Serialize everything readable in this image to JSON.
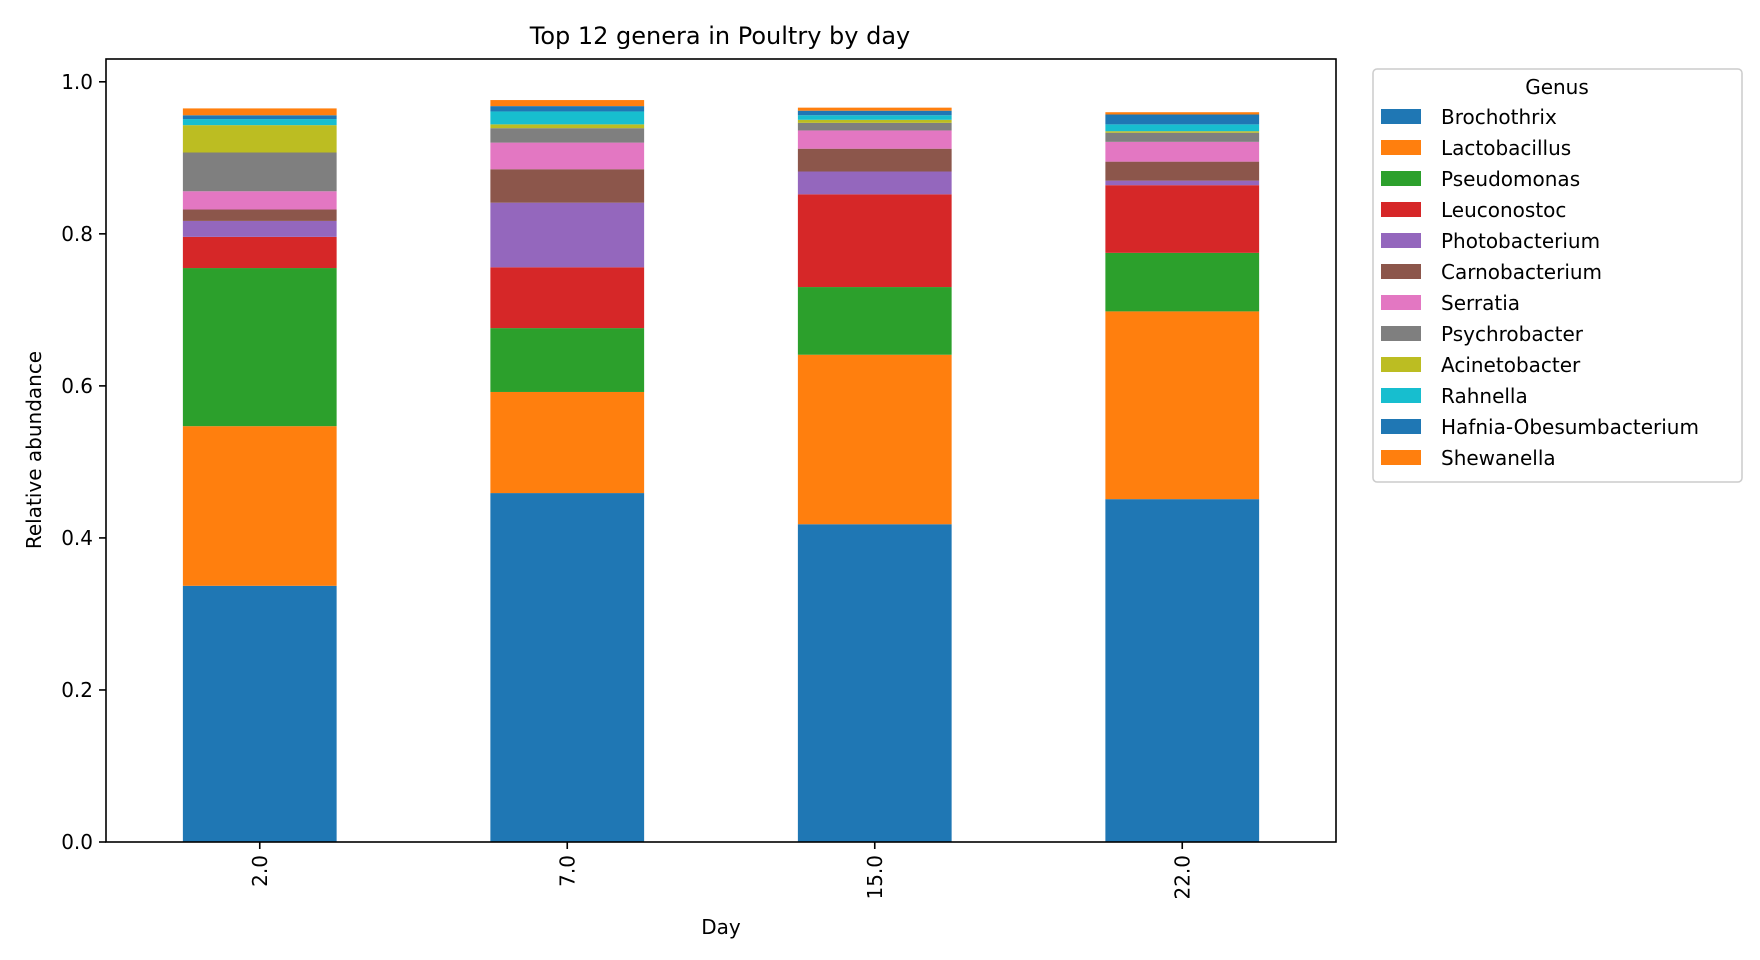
{
  "chart_data": {
    "type": "bar",
    "stacked": true,
    "title": "Top 12 genera in Poultry by day",
    "xlabel": "Day",
    "ylabel": "Relative abundance",
    "ylim": [
      0,
      1.03
    ],
    "yticks": [
      "0.0",
      "0.2",
      "0.4",
      "0.6",
      "0.8",
      "1.0"
    ],
    "categories": [
      "2.0",
      "7.0",
      "15.0",
      "22.0"
    ],
    "legend_title": "Genus",
    "legend_position": "outside-upper-right",
    "grid": false,
    "series": [
      {
        "name": "Brochothrix",
        "color": "#1f77b4",
        "values": [
          0.337,
          0.459,
          0.418,
          0.451
        ]
      },
      {
        "name": "Lactobacillus",
        "color": "#ff7f0e",
        "values": [
          0.21,
          0.133,
          0.223,
          0.247
        ]
      },
      {
        "name": "Pseudomonas",
        "color": "#2ca02c",
        "values": [
          0.208,
          0.084,
          0.089,
          0.077
        ]
      },
      {
        "name": "Leuconostoc",
        "color": "#d62728",
        "values": [
          0.041,
          0.08,
          0.122,
          0.089
        ]
      },
      {
        "name": "Photobacterium",
        "color": "#9467bd",
        "values": [
          0.021,
          0.085,
          0.03,
          0.006
        ]
      },
      {
        "name": "Carnobacterium",
        "color": "#8c564b",
        "values": [
          0.015,
          0.044,
          0.03,
          0.025
        ]
      },
      {
        "name": "Serratia",
        "color": "#e377c2",
        "values": [
          0.024,
          0.035,
          0.024,
          0.026
        ]
      },
      {
        "name": "Psychrobacter",
        "color": "#7f7f7f",
        "values": [
          0.051,
          0.019,
          0.01,
          0.012
        ]
      },
      {
        "name": "Acinetobacter",
        "color": "#bcbd22",
        "values": [
          0.036,
          0.005,
          0.004,
          0.002
        ]
      },
      {
        "name": "Rahnella",
        "color": "#17becf",
        "values": [
          0.008,
          0.017,
          0.006,
          0.009
        ]
      },
      {
        "name": "Hafnia-Obesumbacterium",
        "color": "#1f77b4",
        "values": [
          0.005,
          0.007,
          0.006,
          0.013
        ]
      },
      {
        "name": "Shewanella",
        "color": "#ff7f0e",
        "values": [
          0.009,
          0.008,
          0.004,
          0.003
        ]
      }
    ]
  }
}
